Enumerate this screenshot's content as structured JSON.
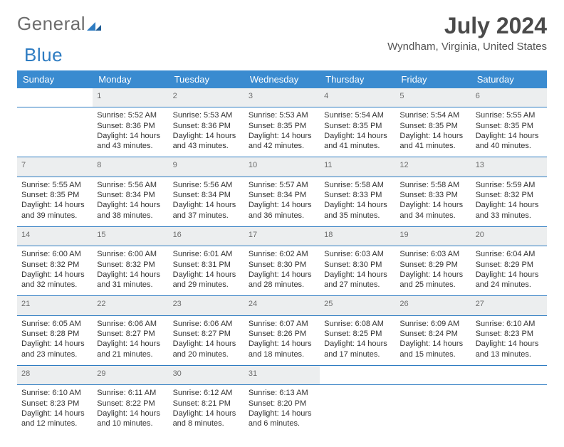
{
  "brand": {
    "part1": "General",
    "part2": "Blue"
  },
  "header": {
    "title": "July 2024",
    "location": "Wyndham, Virginia, United States"
  },
  "calendar": {
    "type": "table",
    "header_bg": "#3a8bd0",
    "header_text_color": "#ffffff",
    "daynum_bg": "#eceeef",
    "rule_color": "#2e7cc2",
    "background_color": "#ffffff",
    "columns": [
      "Sunday",
      "Monday",
      "Tuesday",
      "Wednesday",
      "Thursday",
      "Friday",
      "Saturday"
    ],
    "weeks": [
      {
        "nums": [
          "",
          "1",
          "2",
          "3",
          "4",
          "5",
          "6"
        ],
        "info": [
          "",
          "Sunrise: 5:52 AM\nSunset: 8:36 PM\nDaylight: 14 hours and 43 minutes.",
          "Sunrise: 5:53 AM\nSunset: 8:36 PM\nDaylight: 14 hours and 43 minutes.",
          "Sunrise: 5:53 AM\nSunset: 8:35 PM\nDaylight: 14 hours and 42 minutes.",
          "Sunrise: 5:54 AM\nSunset: 8:35 PM\nDaylight: 14 hours and 41 minutes.",
          "Sunrise: 5:54 AM\nSunset: 8:35 PM\nDaylight: 14 hours and 41 minutes.",
          "Sunrise: 5:55 AM\nSunset: 8:35 PM\nDaylight: 14 hours and 40 minutes."
        ]
      },
      {
        "nums": [
          "7",
          "8",
          "9",
          "10",
          "11",
          "12",
          "13"
        ],
        "info": [
          "Sunrise: 5:55 AM\nSunset: 8:35 PM\nDaylight: 14 hours and 39 minutes.",
          "Sunrise: 5:56 AM\nSunset: 8:34 PM\nDaylight: 14 hours and 38 minutes.",
          "Sunrise: 5:56 AM\nSunset: 8:34 PM\nDaylight: 14 hours and 37 minutes.",
          "Sunrise: 5:57 AM\nSunset: 8:34 PM\nDaylight: 14 hours and 36 minutes.",
          "Sunrise: 5:58 AM\nSunset: 8:33 PM\nDaylight: 14 hours and 35 minutes.",
          "Sunrise: 5:58 AM\nSunset: 8:33 PM\nDaylight: 14 hours and 34 minutes.",
          "Sunrise: 5:59 AM\nSunset: 8:32 PM\nDaylight: 14 hours and 33 minutes."
        ]
      },
      {
        "nums": [
          "14",
          "15",
          "16",
          "17",
          "18",
          "19",
          "20"
        ],
        "info": [
          "Sunrise: 6:00 AM\nSunset: 8:32 PM\nDaylight: 14 hours and 32 minutes.",
          "Sunrise: 6:00 AM\nSunset: 8:32 PM\nDaylight: 14 hours and 31 minutes.",
          "Sunrise: 6:01 AM\nSunset: 8:31 PM\nDaylight: 14 hours and 29 minutes.",
          "Sunrise: 6:02 AM\nSunset: 8:30 PM\nDaylight: 14 hours and 28 minutes.",
          "Sunrise: 6:03 AM\nSunset: 8:30 PM\nDaylight: 14 hours and 27 minutes.",
          "Sunrise: 6:03 AM\nSunset: 8:29 PM\nDaylight: 14 hours and 25 minutes.",
          "Sunrise: 6:04 AM\nSunset: 8:29 PM\nDaylight: 14 hours and 24 minutes."
        ]
      },
      {
        "nums": [
          "21",
          "22",
          "23",
          "24",
          "25",
          "26",
          "27"
        ],
        "info": [
          "Sunrise: 6:05 AM\nSunset: 8:28 PM\nDaylight: 14 hours and 23 minutes.",
          "Sunrise: 6:06 AM\nSunset: 8:27 PM\nDaylight: 14 hours and 21 minutes.",
          "Sunrise: 6:06 AM\nSunset: 8:27 PM\nDaylight: 14 hours and 20 minutes.",
          "Sunrise: 6:07 AM\nSunset: 8:26 PM\nDaylight: 14 hours and 18 minutes.",
          "Sunrise: 6:08 AM\nSunset: 8:25 PM\nDaylight: 14 hours and 17 minutes.",
          "Sunrise: 6:09 AM\nSunset: 8:24 PM\nDaylight: 14 hours and 15 minutes.",
          "Sunrise: 6:10 AM\nSunset: 8:23 PM\nDaylight: 14 hours and 13 minutes."
        ]
      },
      {
        "nums": [
          "28",
          "29",
          "30",
          "31",
          "",
          "",
          ""
        ],
        "info": [
          "Sunrise: 6:10 AM\nSunset: 8:23 PM\nDaylight: 14 hours and 12 minutes.",
          "Sunrise: 6:11 AM\nSunset: 8:22 PM\nDaylight: 14 hours and 10 minutes.",
          "Sunrise: 6:12 AM\nSunset: 8:21 PM\nDaylight: 14 hours and 8 minutes.",
          "Sunrise: 6:13 AM\nSunset: 8:20 PM\nDaylight: 14 hours and 6 minutes.",
          "",
          "",
          ""
        ]
      }
    ]
  }
}
